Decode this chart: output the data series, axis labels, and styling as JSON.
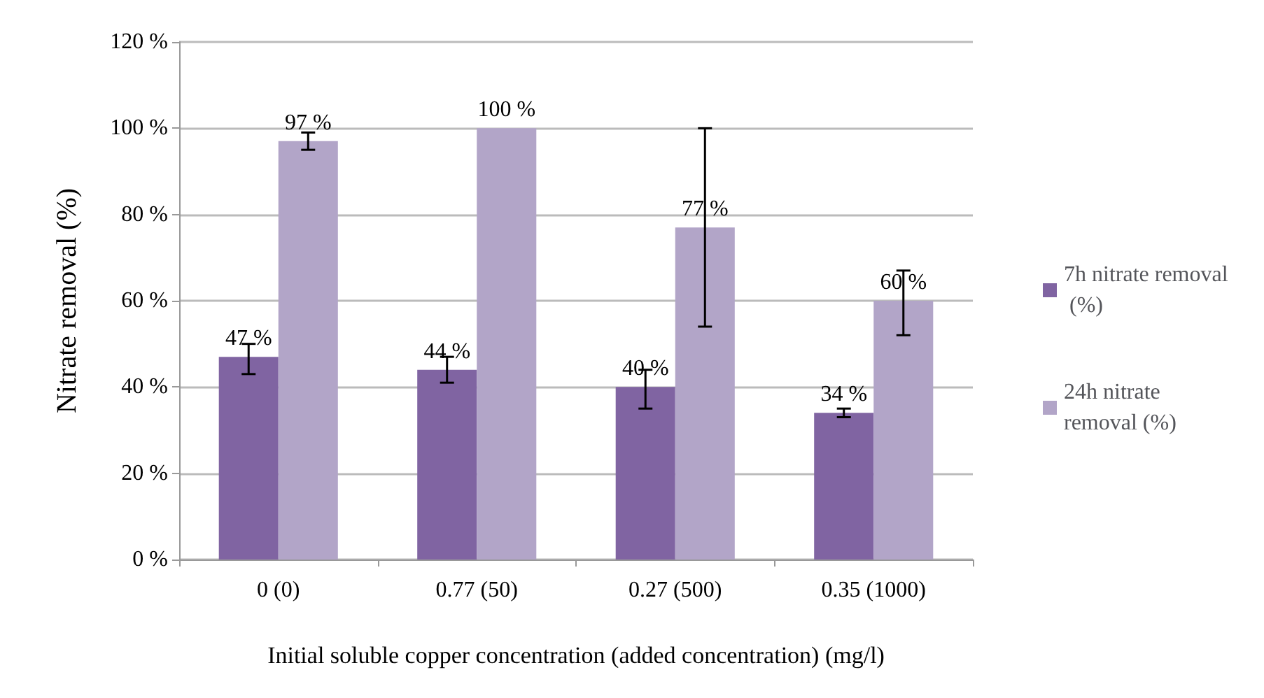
{
  "chart_data": {
    "type": "bar",
    "xlabel": "Initial soluble copper concentration (added concentration) (mg/l)",
    "ylabel": "Nitrate removal (%)",
    "categories": [
      "0 (0)",
      "0.77 (50)",
      "0.27 (500)",
      "0.35 (1000)"
    ],
    "series": [
      {
        "name": "7h nitrate removal (%)",
        "color": "#8064a2",
        "values": [
          47,
          44,
          40,
          34
        ],
        "value_labels": [
          "47 %",
          "44 %",
          "40 %",
          "34 %"
        ],
        "errors": [
          [
            43,
            50
          ],
          [
            41,
            47
          ],
          [
            35,
            44
          ],
          [
            33,
            35
          ]
        ]
      },
      {
        "name": "24h nitrate removal (%)",
        "color": "#b2a5c8",
        "values": [
          97,
          100,
          77,
          60
        ],
        "value_labels": [
          "97 %",
          "100 %",
          "77 %",
          "60 %"
        ],
        "errors": [
          [
            95,
            99
          ],
          null,
          [
            54,
            100
          ],
          [
            52,
            67
          ]
        ]
      }
    ],
    "ylim": [
      0,
      120
    ],
    "yticks": [
      {
        "value": 0,
        "label": "0 %"
      },
      {
        "value": 20,
        "label": "20 %"
      },
      {
        "value": 40,
        "label": "40 %"
      },
      {
        "value": 60,
        "label": "60 %"
      },
      {
        "value": 80,
        "label": "80 %"
      },
      {
        "value": 100,
        "label": "100 %"
      },
      {
        "value": 120,
        "label": "120 %"
      }
    ],
    "grid": "y",
    "legend": "right"
  }
}
